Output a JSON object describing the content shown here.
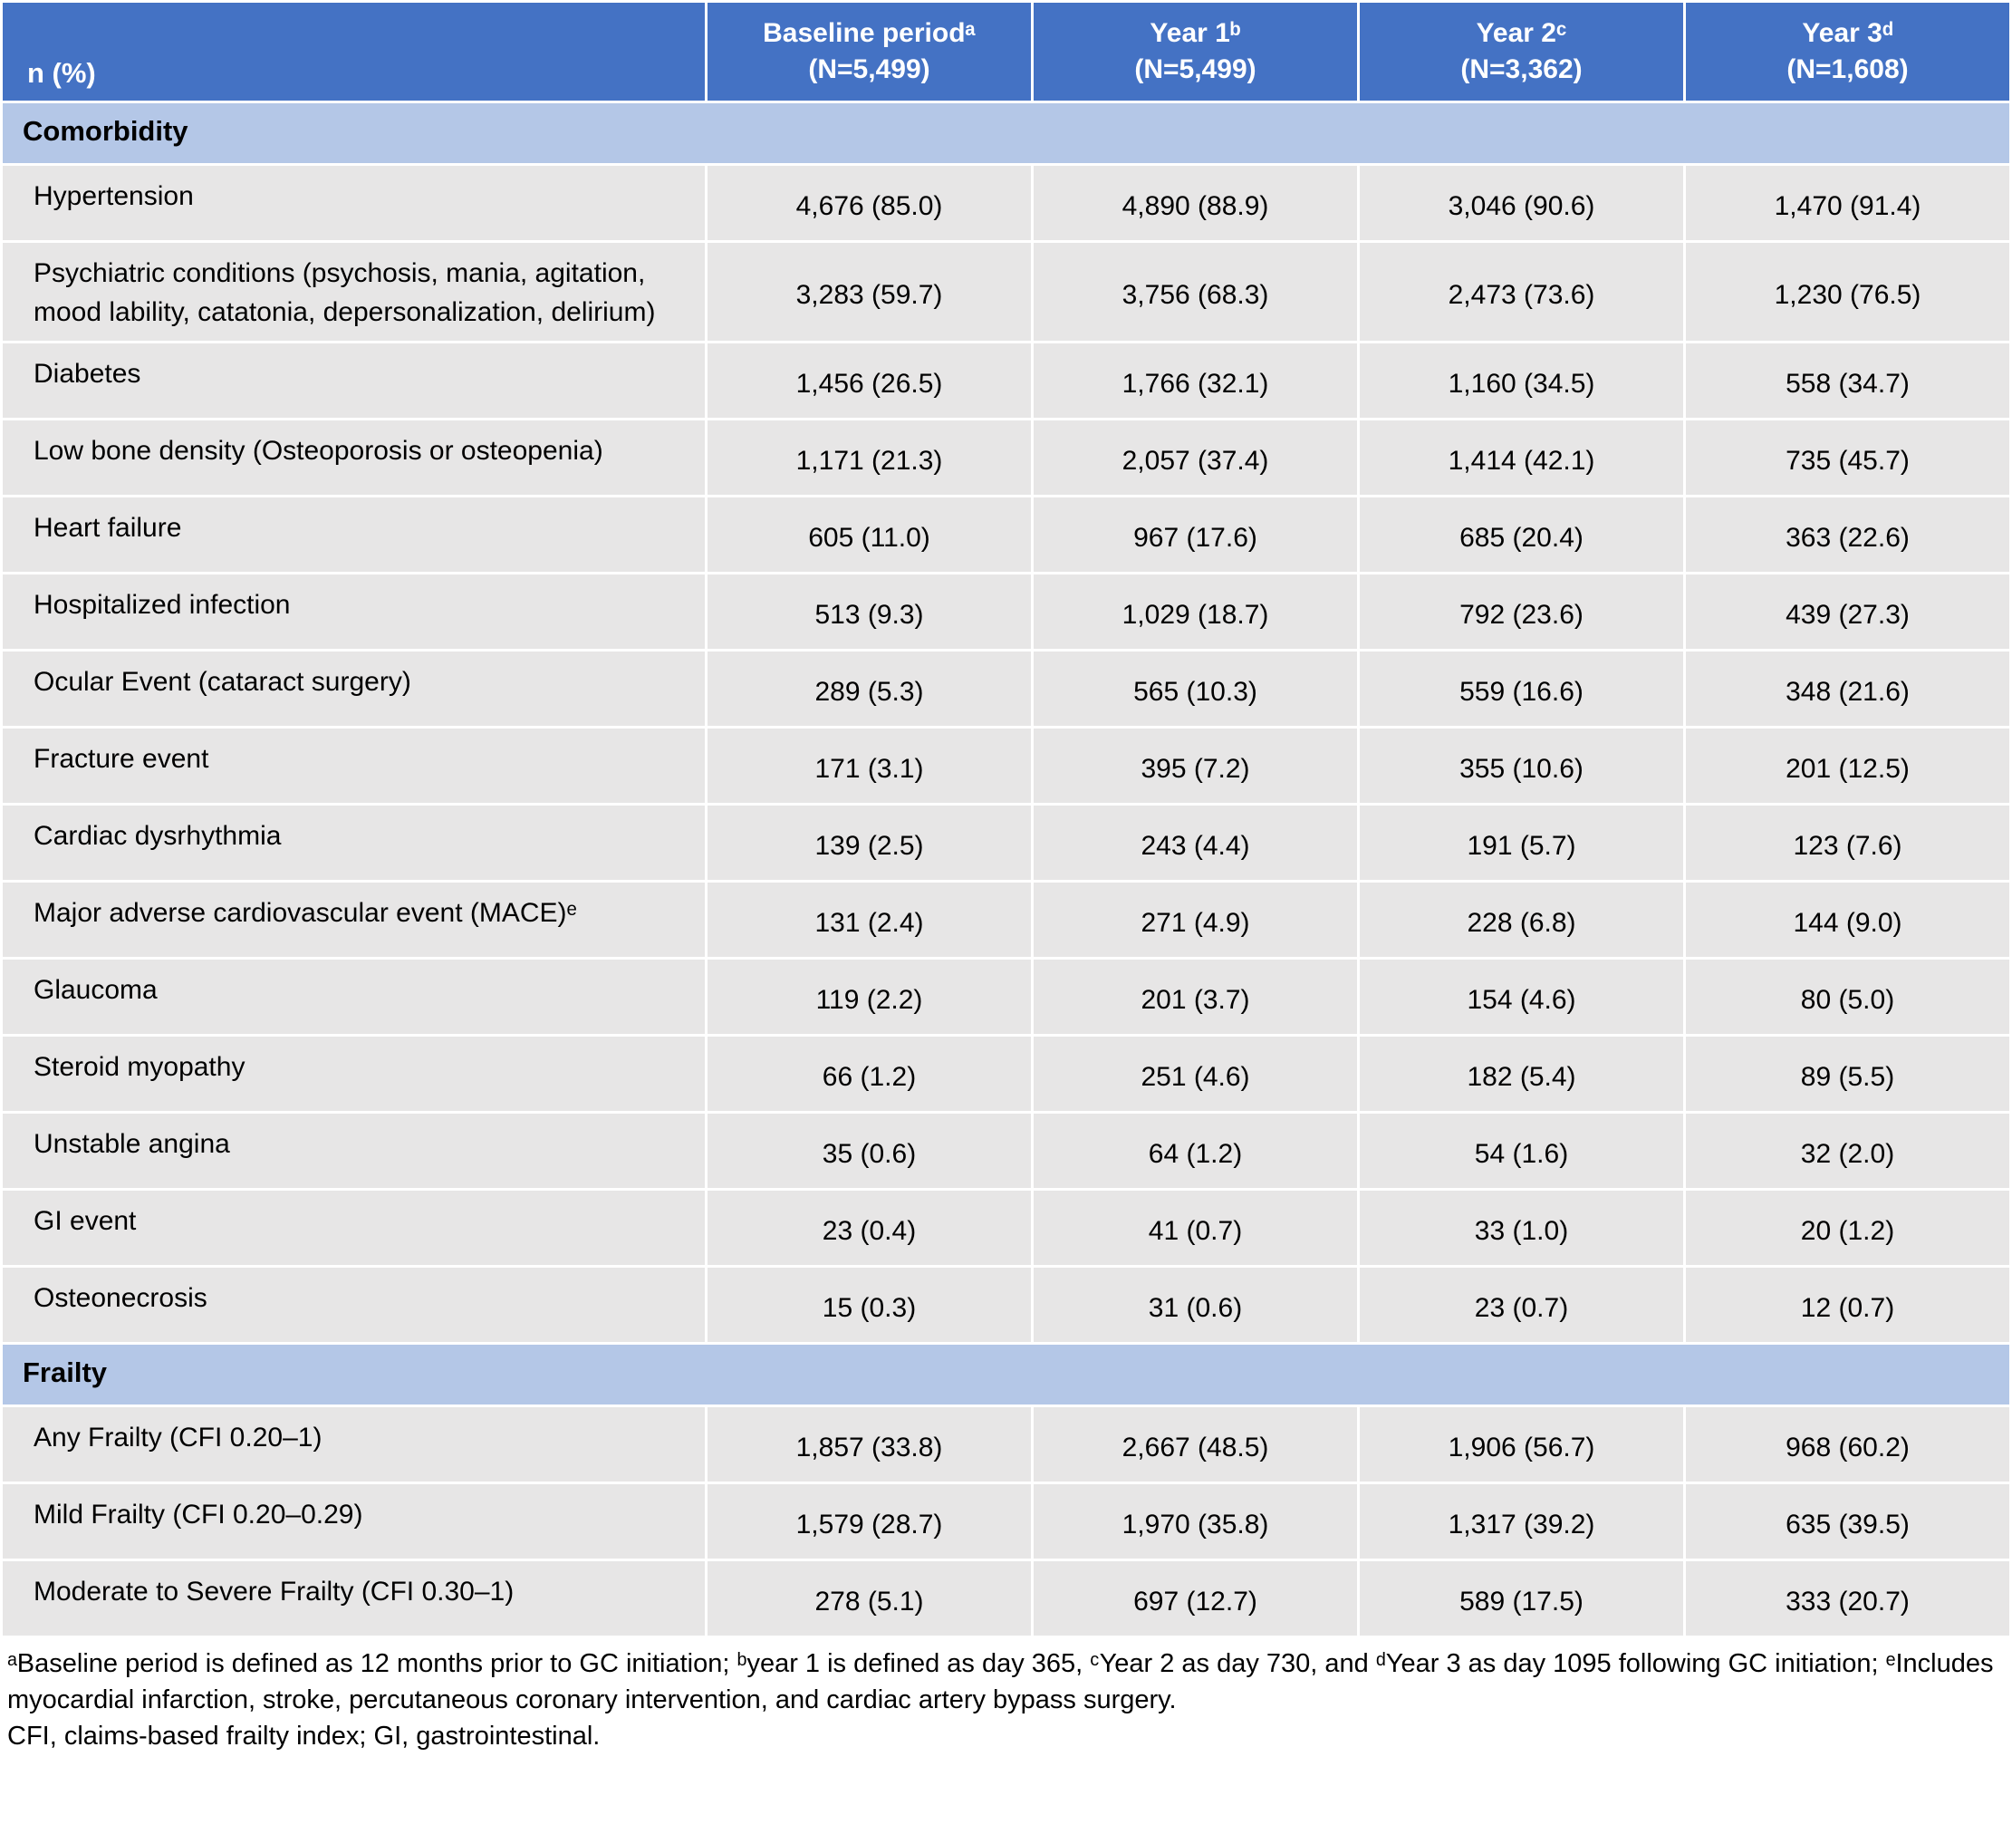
{
  "colors": {
    "header_bg": "#4472C4",
    "section_bg": "#B4C7E7",
    "row_bg": "#E7E6E6"
  },
  "table": {
    "corner_label": "n (%)",
    "columns": [
      {
        "label": "Baseline periodᵃ",
        "n": "(N=5,499)"
      },
      {
        "label": "Year 1ᵇ",
        "n": "(N=5,499)"
      },
      {
        "label": "Year 2ᶜ",
        "n": "(N=3,362)"
      },
      {
        "label": "Year 3ᵈ",
        "n": "(N=1,608)"
      }
    ],
    "sections": [
      {
        "title": "Comorbidity",
        "rows": [
          {
            "label": "Hypertension",
            "values": [
              "4,676 (85.0)",
              "4,890 (88.9)",
              "3,046 (90.6)",
              "1,470 (91.4)"
            ]
          },
          {
            "label": "Psychiatric conditions (psychosis, mania, agitation, mood lability, catatonia, depersonalization, delirium)",
            "values": [
              "3,283 (59.7)",
              "3,756 (68.3)",
              "2,473 (73.6)",
              "1,230 (76.5)"
            ]
          },
          {
            "label": "Diabetes",
            "values": [
              "1,456 (26.5)",
              "1,766 (32.1)",
              "1,160 (34.5)",
              "558 (34.7)"
            ]
          },
          {
            "label": "Low bone density (Osteoporosis or osteopenia)",
            "values": [
              "1,171 (21.3)",
              "2,057 (37.4)",
              "1,414 (42.1)",
              "735 (45.7)"
            ]
          },
          {
            "label": "Heart failure",
            "values": [
              "605 (11.0)",
              "967 (17.6)",
              "685 (20.4)",
              "363 (22.6)"
            ]
          },
          {
            "label": "Hospitalized infection",
            "values": [
              "513 (9.3)",
              "1,029 (18.7)",
              "792 (23.6)",
              "439 (27.3)"
            ]
          },
          {
            "label": "Ocular Event (cataract surgery)",
            "values": [
              "289 (5.3)",
              "565 (10.3)",
              "559 (16.6)",
              "348 (21.6)"
            ]
          },
          {
            "label": "Fracture event",
            "values": [
              "171 (3.1)",
              "395 (7.2)",
              "355 (10.6)",
              "201 (12.5)"
            ]
          },
          {
            "label": "Cardiac dysrhythmia",
            "values": [
              "139 (2.5)",
              "243 (4.4)",
              "191 (5.7)",
              "123 (7.6)"
            ]
          },
          {
            "label": "Major adverse cardiovascular event (MACE)ᵉ",
            "values": [
              "131 (2.4)",
              "271 (4.9)",
              "228 (6.8)",
              "144 (9.0)"
            ]
          },
          {
            "label": "Glaucoma",
            "values": [
              "119 (2.2)",
              "201 (3.7)",
              "154 (4.6)",
              "80 (5.0)"
            ]
          },
          {
            "label": "Steroid myopathy",
            "values": [
              "66 (1.2)",
              "251 (4.6)",
              "182 (5.4)",
              "89 (5.5)"
            ]
          },
          {
            "label": "Unstable angina",
            "values": [
              "35 (0.6)",
              "64 (1.2)",
              "54 (1.6)",
              "32 (2.0)"
            ]
          },
          {
            "label": "GI event",
            "values": [
              "23 (0.4)",
              "41 (0.7)",
              "33 (1.0)",
              "20 (1.2)"
            ]
          },
          {
            "label": "Osteonecrosis",
            "values": [
              "15 (0.3)",
              "31 (0.6)",
              "23 (0.7)",
              "12 (0.7)"
            ]
          }
        ]
      },
      {
        "title": "Frailty",
        "rows": [
          {
            "label": "Any Frailty (CFI 0.20–1)",
            "values": [
              "1,857 (33.8)",
              "2,667 (48.5)",
              "1,906 (56.7)",
              "968 (60.2)"
            ]
          },
          {
            "label": "Mild Frailty (CFI 0.20–0.29)",
            "values": [
              "1,579 (28.7)",
              "1,970 (35.8)",
              "1,317 (39.2)",
              "635 (39.5)"
            ]
          },
          {
            "label": "Moderate to Severe Frailty (CFI 0.30–1)",
            "values": [
              "278 (5.1)",
              "697 (12.7)",
              "589 (17.5)",
              "333 (20.7)"
            ]
          }
        ]
      }
    ]
  },
  "footnotes": [
    "ᵃBaseline period is defined as 12 months prior to GC initiation; ᵇyear 1 is defined as day 365, ᶜYear 2 as day 730, and ᵈYear 3 as day 1095 following GC initiation; ᵉIncludes myocardial infarction, stroke, percutaneous coronary intervention, and cardiac artery bypass surgery.",
    "CFI, claims-based frailty index; GI, gastrointestinal."
  ]
}
